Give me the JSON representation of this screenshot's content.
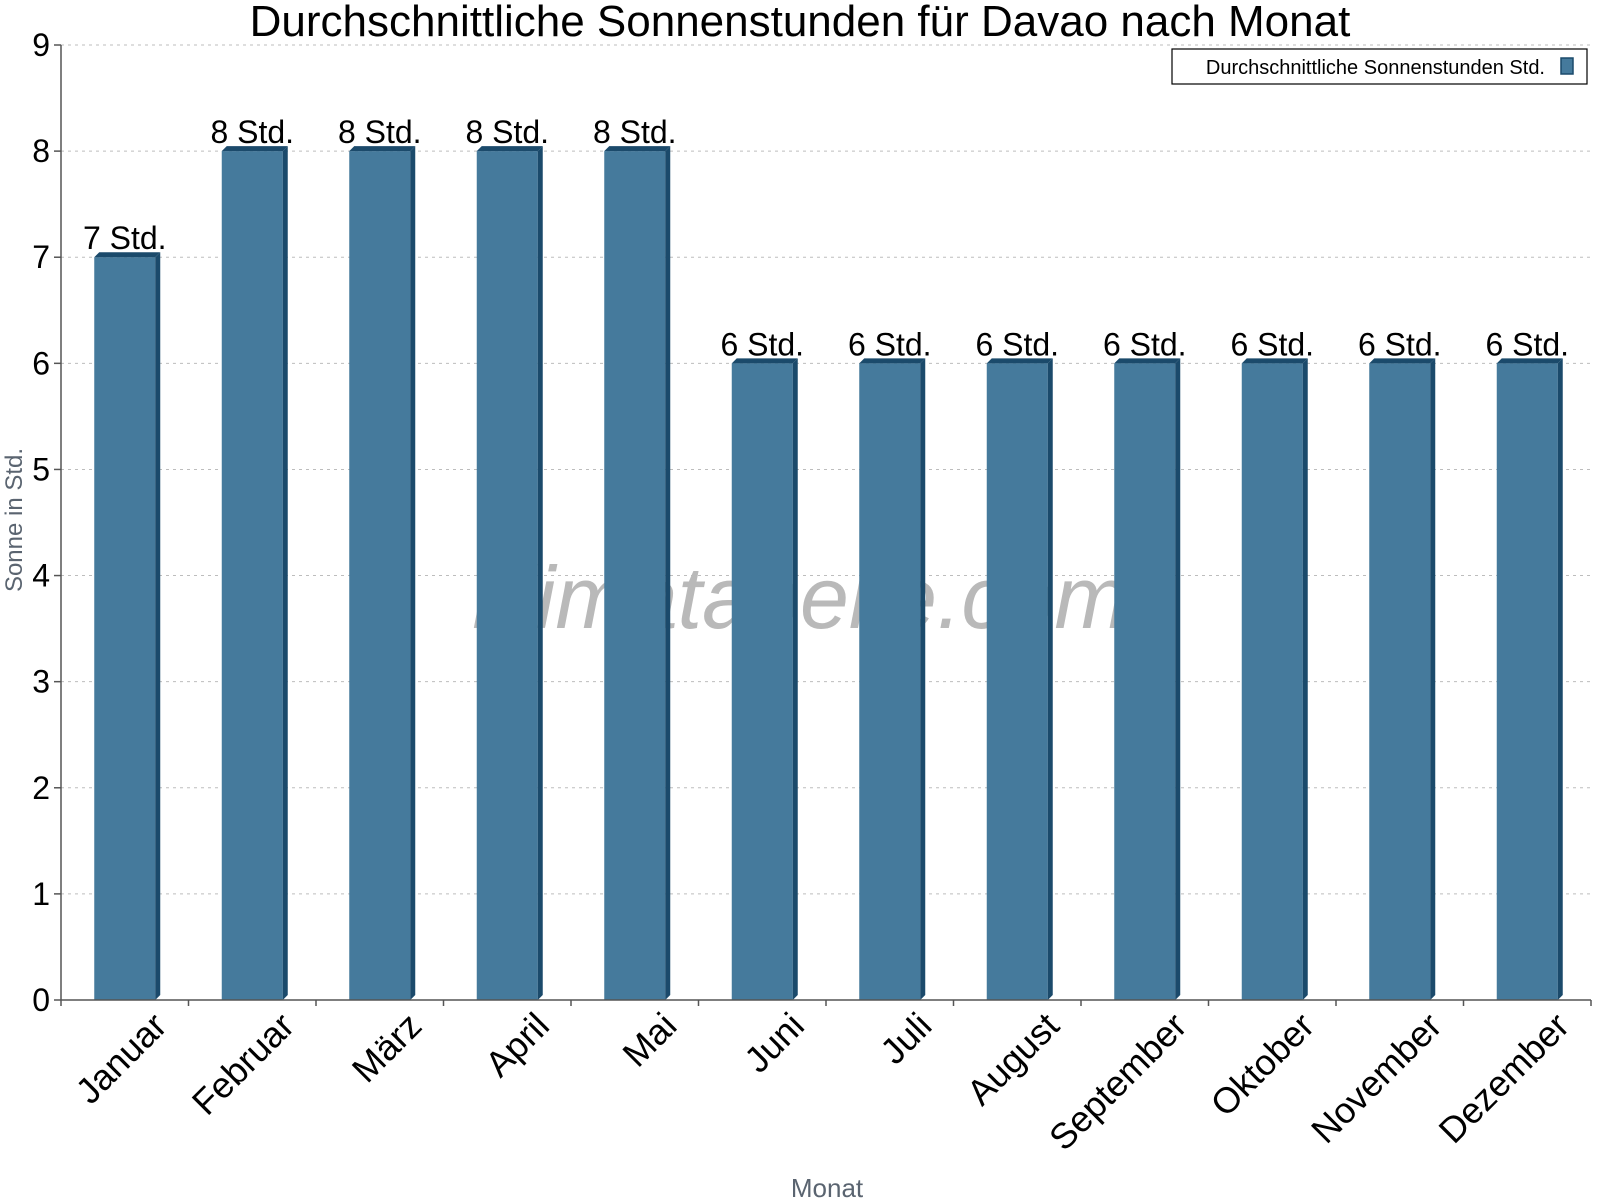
{
  "chart_data": {
    "type": "bar",
    "title": "Durchschnittliche Sonnenstunden für Davao nach Monat",
    "xlabel": "Monat",
    "ylabel": "Sonne in Std.",
    "ylim": [
      0,
      9
    ],
    "yticks": [
      0,
      1,
      2,
      3,
      4,
      5,
      6,
      7,
      8,
      9
    ],
    "grid": true,
    "legend_position": "top-right",
    "categories": [
      "Januar",
      "Februar",
      "März",
      "April",
      "Mai",
      "Juni",
      "Juli",
      "August",
      "September",
      "Oktober",
      "November",
      "Dezember"
    ],
    "series": [
      {
        "name": "Durchschnittliche Sonnenstunden Std.",
        "values": [
          7,
          8,
          8,
          8,
          8,
          6,
          6,
          6,
          6,
          6,
          6,
          6
        ],
        "data_labels": [
          "7 Std.",
          "8 Std.",
          "8 Std.",
          "8 Std.",
          "8 Std.",
          "6 Std.",
          "6 Std.",
          "6 Std.",
          "6 Std.",
          "6 Std.",
          "6 Std.",
          "6 Std."
        ]
      }
    ],
    "colors": {
      "bar": "#457a9c",
      "bar_side": "#1b4a6b",
      "bar_top": "#1b4a6b"
    },
    "watermark": "klimatabelle.com"
  }
}
